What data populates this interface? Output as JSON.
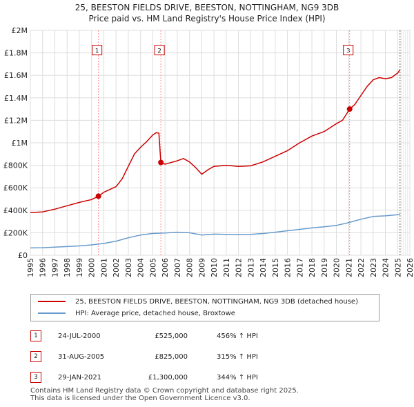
{
  "title": {
    "line1": "25, BEESTON FIELDS DRIVE, BEESTON, NOTTINGHAM, NG9 3DB",
    "line2": "Price paid vs. HM Land Registry's House Price Index (HPI)"
  },
  "colors": {
    "property": "#cc0000",
    "hpi": "#6699cc",
    "marker_line": "#ff8888",
    "grid": "#dddddd",
    "projection": "#555555"
  },
  "chart_data": {
    "type": "line",
    "title": "Price paid vs. HM Land Registry's House Price Index (HPI)",
    "xlabel": "",
    "ylabel": "",
    "xlim": [
      1995,
      2026
    ],
    "ylim": [
      0,
      2000000
    ],
    "grid": true,
    "xticks": [
      "1995",
      "1996",
      "1997",
      "1998",
      "1999",
      "2000",
      "2001",
      "2002",
      "2003",
      "2004",
      "2005",
      "2006",
      "2007",
      "2008",
      "2009",
      "2010",
      "2011",
      "2012",
      "2013",
      "2014",
      "2015",
      "2016",
      "2017",
      "2018",
      "2019",
      "2020",
      "2021",
      "2022",
      "2023",
      "2024",
      "2025",
      "2026"
    ],
    "yticks": [
      {
        "value": 0,
        "label": "£0"
      },
      {
        "value": 200000,
        "label": "£200K"
      },
      {
        "value": 400000,
        "label": "£400K"
      },
      {
        "value": 600000,
        "label": "£600K"
      },
      {
        "value": 800000,
        "label": "£800K"
      },
      {
        "value": 1000000,
        "label": "£1M"
      },
      {
        "value": 1200000,
        "label": "£1.2M"
      },
      {
        "value": 1400000,
        "label": "£1.4M"
      },
      {
        "value": 1600000,
        "label": "£1.6M"
      },
      {
        "value": 1800000,
        "label": "£1.8M"
      },
      {
        "value": 2000000,
        "label": "£2M"
      }
    ],
    "series": [
      {
        "name": "25, BEESTON FIELDS DRIVE, BEESTON, NOTTINGHAM, NG9 3DB (detached house)",
        "color": "#cc0000",
        "x": [
          1995,
          1996,
          1997,
          1998,
          1999,
          2000,
          2000.56,
          2001,
          2002,
          2002.5,
          2003,
          2003.5,
          2004,
          2004.5,
          2005,
          2005.3,
          2005.5,
          2005.66,
          2006,
          2007,
          2007.5,
          2008,
          2008.5,
          2009,
          2009.5,
          2010,
          2011,
          2012,
          2013,
          2014,
          2015,
          2016,
          2017,
          2018,
          2019,
          2020,
          2020.5,
          2021.08,
          2021.5,
          2022,
          2022.5,
          2023,
          2023.5,
          2024,
          2024.5,
          2025,
          2025.2
        ],
        "values": [
          380000,
          385000,
          410000,
          440000,
          470000,
          495000,
          525000,
          560000,
          610000,
          680000,
          790000,
          900000,
          960000,
          1010000,
          1070000,
          1090000,
          1085000,
          825000,
          810000,
          840000,
          860000,
          830000,
          780000,
          720000,
          760000,
          790000,
          800000,
          790000,
          795000,
          830000,
          880000,
          930000,
          1000000,
          1060000,
          1100000,
          1170000,
          1200000,
          1300000,
          1340000,
          1420000,
          1500000,
          1560000,
          1580000,
          1570000,
          1580000,
          1620000,
          1650000
        ]
      },
      {
        "name": "HPI: Average price, detached house, Broxtowe",
        "color": "#6699cc",
        "x": [
          1995,
          1996,
          1997,
          1998,
          1999,
          2000,
          2001,
          2002,
          2003,
          2004,
          2005,
          2006,
          2007,
          2008,
          2009,
          2010,
          2011,
          2012,
          2013,
          2014,
          2015,
          2016,
          2017,
          2018,
          2019,
          2020,
          2021,
          2022,
          2023,
          2024,
          2025,
          2025.2
        ],
        "values": [
          65000,
          67000,
          72000,
          77000,
          83000,
          92000,
          105000,
          125000,
          155000,
          180000,
          194000,
          198000,
          205000,
          200000,
          180000,
          188000,
          186000,
          184000,
          186000,
          193000,
          205000,
          218000,
          230000,
          243000,
          253000,
          265000,
          290000,
          320000,
          345000,
          350000,
          360000,
          365000
        ]
      }
    ],
    "sale_markers": [
      {
        "label": "1",
        "x": 2000.56,
        "value": 525000
      },
      {
        "label": "2",
        "x": 2005.66,
        "value": 825000
      },
      {
        "label": "3",
        "x": 2021.08,
        "value": 1300000
      }
    ],
    "projection_start": 2025.2
  },
  "legend": {
    "property_label": "25, BEESTON FIELDS DRIVE, BEESTON, NOTTINGHAM, NG9 3DB (detached house)",
    "hpi_label": "HPI: Average price, detached house, Broxtowe"
  },
  "sales": [
    {
      "num": "1",
      "date": "24-JUL-2000",
      "price": "£525,000",
      "pct": "456% ↑ HPI"
    },
    {
      "num": "2",
      "date": "31-AUG-2005",
      "price": "£825,000",
      "pct": "315% ↑ HPI"
    },
    {
      "num": "3",
      "date": "29-JAN-2021",
      "price": "£1,300,000",
      "pct": "344% ↑ HPI"
    }
  ],
  "footer": {
    "line1": "Contains HM Land Registry data © Crown copyright and database right 2025.",
    "line2": "This data is licensed under the Open Government Licence v3.0."
  }
}
